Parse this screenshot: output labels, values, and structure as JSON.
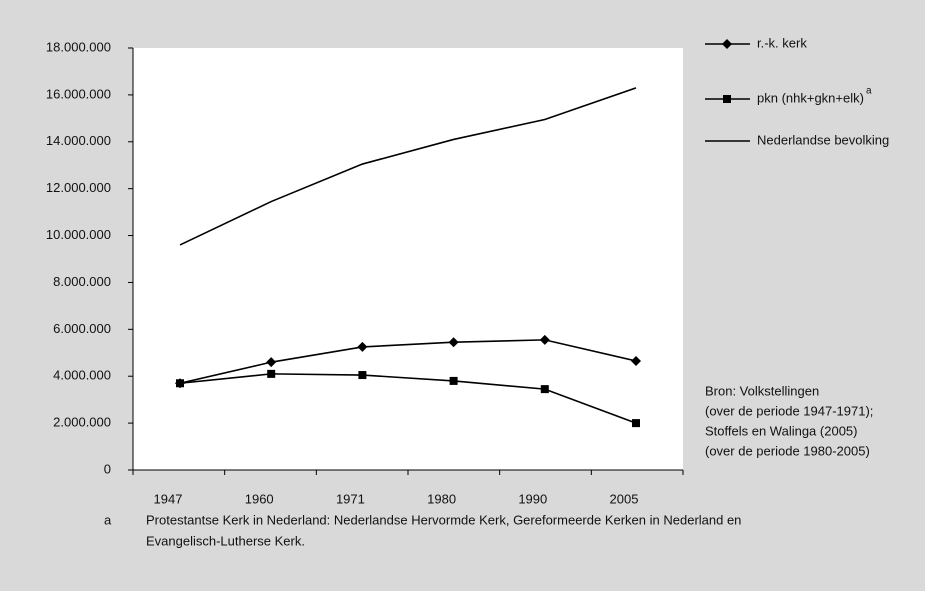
{
  "chart_data": {
    "type": "line",
    "categories": [
      "1947",
      "1960",
      "1971",
      "1980",
      "1990",
      "2005"
    ],
    "series": [
      {
        "name": "r.-k. kerk",
        "color": "#000000",
        "marker": "diamond",
        "values": [
          3700000,
          4600000,
          5250000,
          5450000,
          5550000,
          4650000
        ]
      },
      {
        "name": "pkn (nhk+gkn+elk)",
        "name_superscript": "a",
        "color": "#000000",
        "marker": "square",
        "values": [
          3700000,
          4100000,
          4050000,
          3800000,
          3450000,
          2000000
        ]
      },
      {
        "name": "Nederlandse bevolking",
        "color": "#000000",
        "marker": "none",
        "values": [
          9600000,
          11450000,
          13050000,
          14100000,
          14950000,
          16300000
        ]
      }
    ],
    "ylim": [
      0,
      18000000
    ],
    "yticks": [
      0,
      {
        "value": 2000000,
        "label": "2.000.000"
      },
      {
        "value": 4000000,
        "label": "4.000.000"
      },
      {
        "value": 6000000,
        "label": "6.000.000"
      },
      {
        "value": 8000000,
        "label": "8.000.000"
      },
      {
        "value": 10000000,
        "label": "10.000.000"
      },
      {
        "value": 12000000,
        "label": "12.000.000"
      },
      {
        "value": 14000000,
        "label": "14.000.000"
      },
      {
        "value": 16000000,
        "label": "16.000.000"
      },
      {
        "value": 18000000,
        "label": "18.000.000"
      }
    ],
    "grid": false,
    "legend": "right",
    "source_note": [
      "Bron: Volkstellingen",
      "(over de periode 1947-1971);",
      "Stoffels en Walinga (2005)",
      "(over de periode 1980-2005)"
    ],
    "footnote": {
      "marker": "a",
      "lines": [
        "Protestantse Kerk in Nederland: Nederlandse Hervormde Kerk, Gereformeerde Kerken in Nederland en",
        "Evangelisch-Lutherse Kerk."
      ]
    }
  }
}
